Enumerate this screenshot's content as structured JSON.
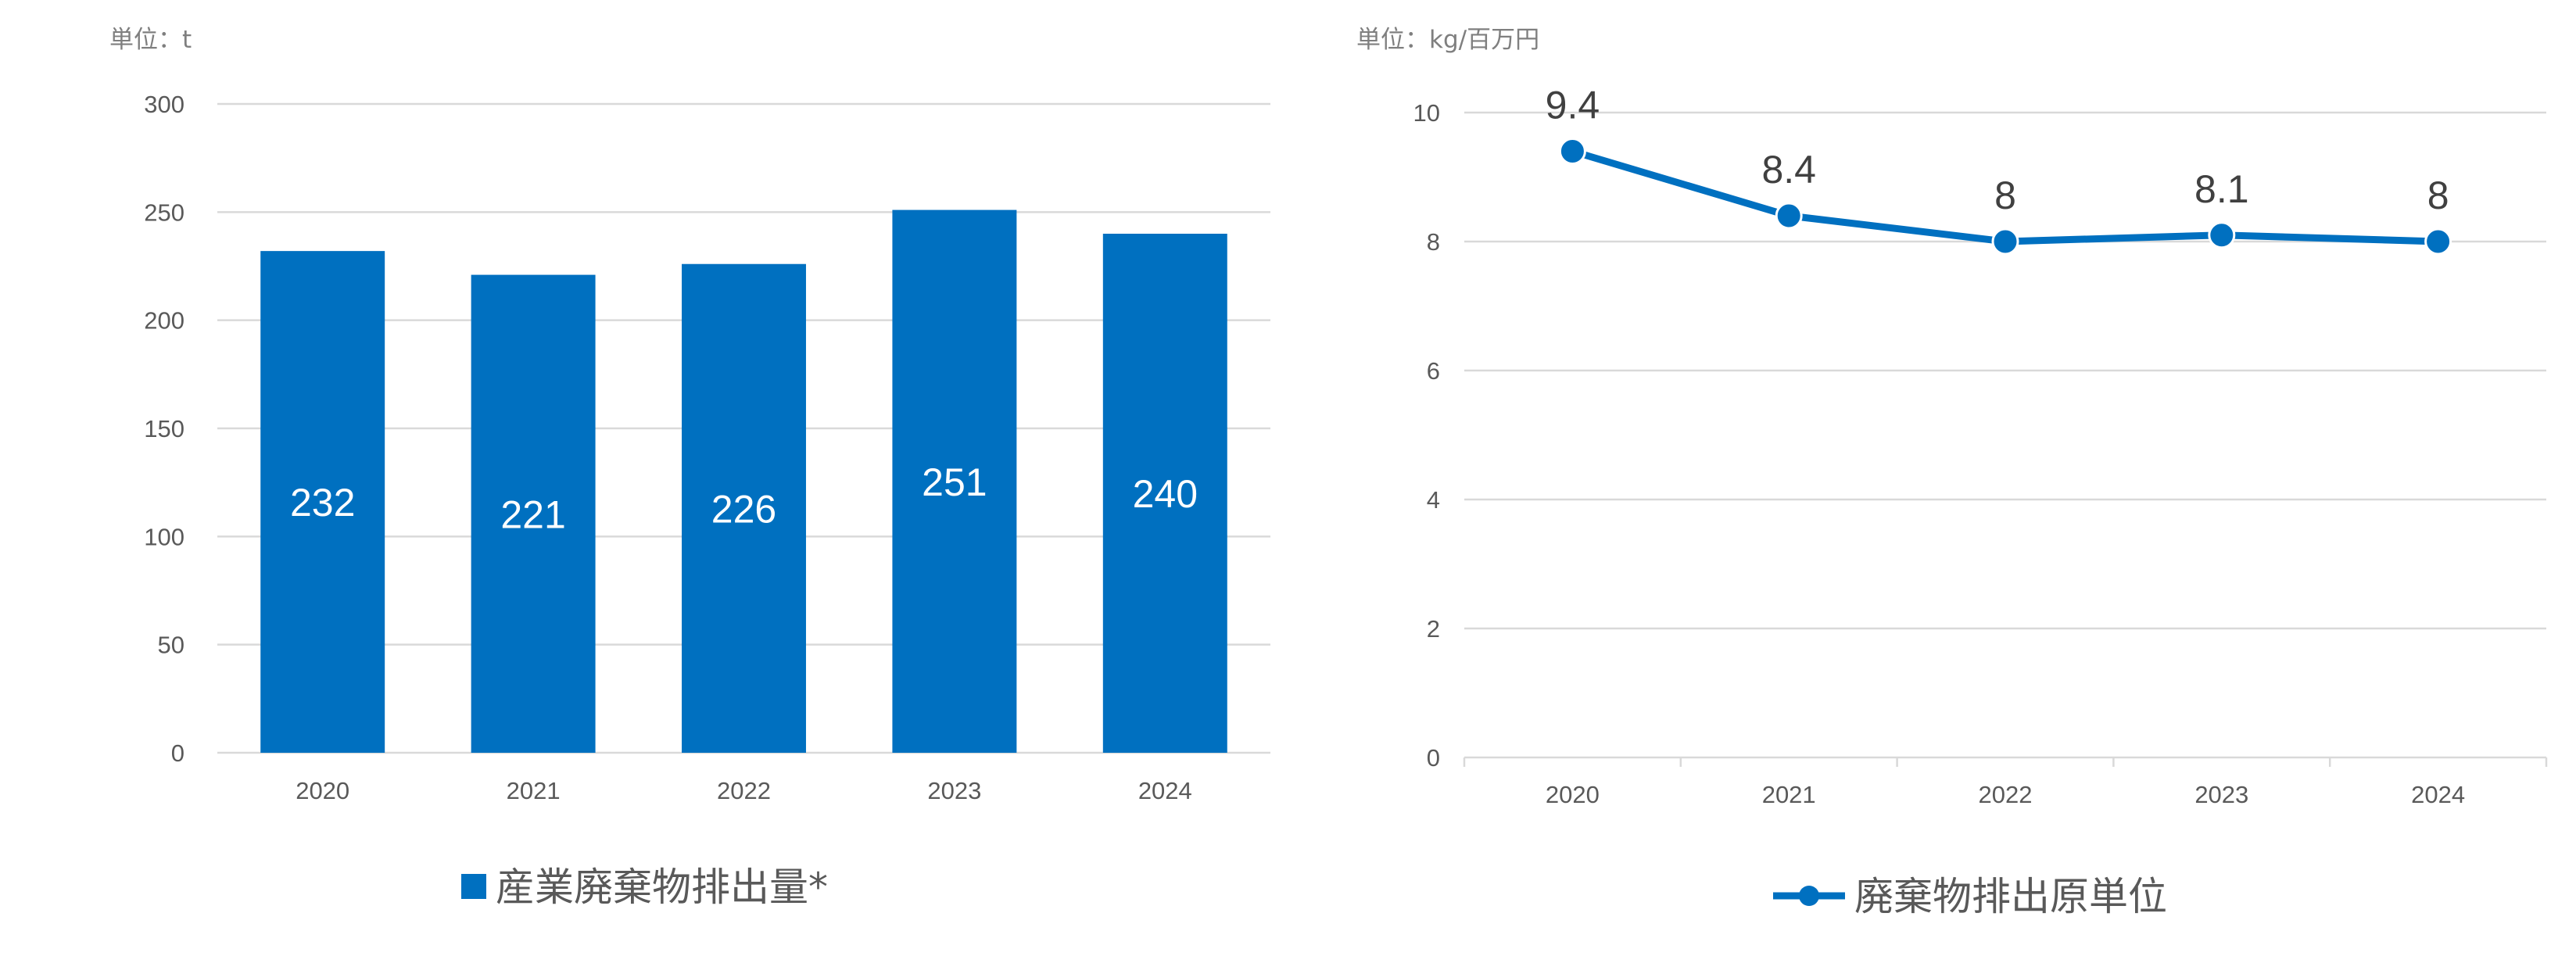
{
  "chart_data": [
    {
      "type": "bar",
      "unit_label": "単位：t",
      "categories": [
        "2020",
        "2021",
        "2022",
        "2023",
        "2024"
      ],
      "series": [
        {
          "name": "産業廃棄物排出量*",
          "values": [
            232,
            221,
            226,
            251,
            240
          ]
        }
      ],
      "yticks": [
        "0",
        "50",
        "100",
        "150",
        "200",
        "250",
        "300"
      ],
      "ylim": [
        0,
        300
      ],
      "grid": true,
      "legend": "bottom-center",
      "color": "#0070c0"
    },
    {
      "type": "line",
      "unit_label": "単位：kg/百万円",
      "categories": [
        "2020",
        "2021",
        "2022",
        "2023",
        "2024"
      ],
      "series": [
        {
          "name": "廃棄物排出原単位",
          "values": [
            9.4,
            8.4,
            8,
            8.1,
            8
          ],
          "labels": [
            "9.4",
            "8.4",
            "8",
            "8.1",
            "8"
          ]
        }
      ],
      "yticks": [
        "0",
        "2",
        "4",
        "6",
        "8",
        "10"
      ],
      "ylim": [
        0,
        10
      ],
      "grid": true,
      "legend": "bottom-center",
      "color": "#0070c0"
    }
  ]
}
